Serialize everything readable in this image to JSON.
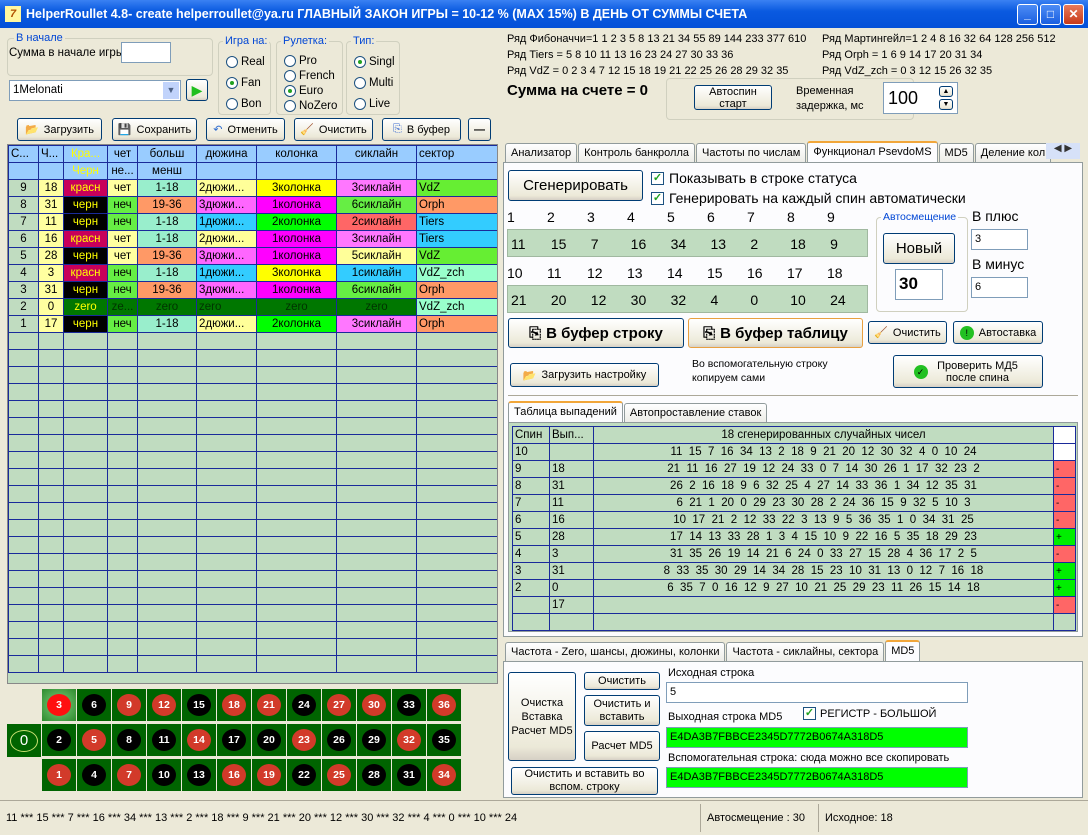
{
  "window": {
    "title": "HelperRoullet 4.8- create helperroullet@ya.ru ГЛАВНЫЙ ЗАКОН ИГРЫ = 10-12 % (MAX 15%) В ДЕНЬ ОТ СУММЫ СЧЕТА",
    "icon_text": "7",
    "min": "_",
    "max": "□",
    "close": "✕"
  },
  "start": {
    "legend": "В начале",
    "sum_label": "Сумма в начале игры",
    "sum_value": "",
    "preset": "1Melonati"
  },
  "game": {
    "legend": "Игра на:",
    "options": [
      "Real",
      "Fan",
      "Bon"
    ],
    "selected": "Fan"
  },
  "roulette": {
    "legend": "Рулетка:",
    "options": [
      "Pro",
      "French",
      "Euro",
      "NoZero"
    ],
    "selected": "Euro"
  },
  "type": {
    "legend": "Тип:",
    "options": [
      "Singl",
      "Multi",
      "Live"
    ],
    "selected": "Singl"
  },
  "toolbar": {
    "load": "Загрузить",
    "save": "Сохранить",
    "undo": "Отменить",
    "clear": "Очистить",
    "copy": "В буфер",
    "minus": "—"
  },
  "colors": {
    "red": "#c8005a",
    "black": "#000000",
    "even": "#ffffa0",
    "odd": "#66ee44",
    "low": "#99eecc",
    "high": "#ff9966",
    "d1": "#33ccff",
    "d2": "#ffff99",
    "d3": "#ff66ff",
    "c1": "#ff00ff",
    "c2": "#00ff00",
    "c3": "#ffff00",
    "s1": "#33ccff",
    "s2": "#ff6666",
    "s3": "#ff77ff",
    "s5": "#ffff99",
    "s6": "#66ee44",
    "VdZ": "#66ee33",
    "Orph": "#ff9966",
    "Tiers": "#33ccff",
    "VdZ_zch": "#99ffcc",
    "zero": "#007700",
    "plus": "#00ee00",
    "minus": "#ff6666"
  },
  "history": {
    "headers1": [
      "С...",
      "Ч...",
      "Кра...",
      "чет",
      "больш",
      "дюжина",
      "колонка",
      "сиклайн",
      "сектор"
    ],
    "headers2": [
      "",
      "",
      "Черн",
      "не...",
      "менш",
      "",
      "",
      "",
      ""
    ],
    "rows": [
      {
        "n": "9",
        "num": "18",
        "color": "красн",
        "c": "red",
        "par": "чет",
        "p": "even",
        "hl": "1-18",
        "h": "low",
        "doz": "2дюжи...",
        "d": "d2",
        "col": "3колонка",
        "k": "c3",
        "six": "3сиклайн",
        "s": "s3",
        "sec": "VdZ"
      },
      {
        "n": "8",
        "num": "31",
        "color": "черн",
        "c": "black",
        "par": "неч",
        "p": "odd",
        "hl": "19-36",
        "h": "high",
        "doz": "3дюжи...",
        "d": "d3",
        "col": "1колонка",
        "k": "c1",
        "six": "6сиклайн",
        "s": "s6",
        "sec": "Orph"
      },
      {
        "n": "7",
        "num": "11",
        "color": "черн",
        "c": "black",
        "par": "неч",
        "p": "odd",
        "hl": "1-18",
        "h": "low",
        "doz": "1дюжи...",
        "d": "d1",
        "col": "2колонка",
        "k": "c2",
        "six": "2сиклайн",
        "s": "s2",
        "sec": "Tiers"
      },
      {
        "n": "6",
        "num": "16",
        "color": "красн",
        "c": "red",
        "par": "чет",
        "p": "even",
        "hl": "1-18",
        "h": "low",
        "doz": "2дюжи...",
        "d": "d2",
        "col": "1колонка",
        "k": "c1",
        "six": "3сиклайн",
        "s": "s3",
        "sec": "Tiers"
      },
      {
        "n": "5",
        "num": "28",
        "color": "черн",
        "c": "black",
        "par": "чет",
        "p": "even",
        "hl": "19-36",
        "h": "high",
        "doz": "3дюжи...",
        "d": "d3",
        "col": "1колонка",
        "k": "c1",
        "six": "5сиклайн",
        "s": "s5",
        "sec": "VdZ"
      },
      {
        "n": "4",
        "num": "3",
        "color": "красн",
        "c": "red",
        "par": "неч",
        "p": "odd",
        "hl": "1-18",
        "h": "low",
        "doz": "1дюжи...",
        "d": "d1",
        "col": "3колонка",
        "k": "c3",
        "six": "1сиклайн",
        "s": "s1",
        "sec": "VdZ_zch"
      },
      {
        "n": "3",
        "num": "31",
        "color": "черн",
        "c": "black",
        "par": "неч",
        "p": "odd",
        "hl": "19-36",
        "h": "high",
        "doz": "3дюжи...",
        "d": "d3",
        "col": "1колонка",
        "k": "c1",
        "six": "6сиклайн",
        "s": "s6",
        "sec": "Orph"
      },
      {
        "n": "2",
        "num": "0",
        "color": "zero",
        "c": "zero",
        "par": "ze...",
        "p": "zero",
        "hl": "zero",
        "h": "zero",
        "doz": "zero",
        "d": "zero",
        "col": "zero",
        "k": "zero",
        "six": "zero",
        "s": "zero",
        "sec": "VdZ_zch"
      },
      {
        "n": "1",
        "num": "17",
        "color": "черн",
        "c": "black",
        "par": "неч",
        "p": "odd",
        "hl": "1-18",
        "h": "low",
        "doz": "2дюжи...",
        "d": "d2",
        "col": "2колонка",
        "k": "c2",
        "six": "3сиклайн",
        "s": "s3",
        "sec": "Orph"
      }
    ]
  },
  "board": {
    "zero": "0",
    "rows": [
      [
        3,
        6,
        9,
        12,
        15,
        18,
        21,
        24,
        27,
        30,
        33,
        36
      ],
      [
        2,
        5,
        8,
        11,
        14,
        17,
        20,
        23,
        26,
        29,
        32,
        35
      ],
      [
        1,
        4,
        7,
        10,
        13,
        16,
        19,
        22,
        25,
        28,
        31,
        34
      ]
    ],
    "red": [
      1,
      3,
      5,
      7,
      9,
      12,
      14,
      16,
      18,
      19,
      21,
      23,
      25,
      27,
      30,
      32,
      34,
      36
    ],
    "highlighted": 3
  },
  "info": {
    "fib": "Ряд Фибоначчи=1 1 2 3 5 8 13 21 34 55 89 144 233 377 610",
    "mart": "Ряд Мартингейл=1 2 4 8 16 32 64 128 256 512",
    "tiers": "Ряд Tiers = 5 8 10 11 13 16 23 24 27 30 33 36",
    "orph": "Ряд Orph = 1 6 9 14 17 20 31 34",
    "vdz": "Ряд VdZ = 0 2 3 4 7 12 15 18 19 21 22 25 26 28 29 32 35",
    "vdzzch": "Ряд VdZ_zch = 0 3 12 15 26 32 35",
    "balance": "Сумма на счете = 0",
    "autospin": "Автоспин старт",
    "delay_label": "Временная задержка, мс",
    "delay": "100"
  },
  "tabs": [
    "Анализатор",
    "Контроль банкролла",
    "Частоты по числам",
    "Функционал PsevdoMS",
    "MD5",
    "Деление кол"
  ],
  "psevdo": {
    "generate": "Сгенерировать",
    "chk1": "Показывать в строке статуса",
    "chk2": "Генерировать на каждый спин автоматически",
    "idx1": [
      "1",
      "2",
      "3",
      "4",
      "5",
      "6",
      "7",
      "8",
      "9"
    ],
    "vals1": [
      "11",
      "15",
      "7",
      "16",
      "34",
      "13",
      "2",
      "18",
      "9"
    ],
    "idx2": [
      "10",
      "11",
      "12",
      "13",
      "14",
      "15",
      "16",
      "17",
      "18"
    ],
    "vals2": [
      "21",
      "20",
      "12",
      "30",
      "32",
      "4",
      "0",
      "10",
      "24"
    ],
    "offset_legend": "Автосмещение",
    "new": "Новый",
    "offset": "30",
    "plus_label": "В плюс",
    "plus": "3",
    "minus_label": "В минус",
    "minus": "6",
    "copy_row": "В буфер строку",
    "copy_table": "В буфер таблицу",
    "clear": "Очистить",
    "autobet": "Автоставка",
    "load_settings": "Загрузить настройку",
    "note": "Во вспомогательную строку копируем сами",
    "check_md5": "Проверить МД5 после спина",
    "subtabs": [
      "Таблица выпадений",
      "Автопроставление ставок"
    ]
  },
  "drops": {
    "headers": [
      "Спин",
      "Вып...",
      "18 сгенерированных случайных чисел",
      ""
    ],
    "rows": [
      {
        "spin": "10",
        "out": "",
        "nums": "11  15  7  16  34  13  2  18  9  21  20  12  30  32  4  0  10  24",
        "res": ""
      },
      {
        "spin": "9",
        "out": "18",
        "nums": "21  11  16  27  19  12  24  33  0  7  14  30  26  1  17  32  23  2",
        "res": "-"
      },
      {
        "spin": "8",
        "out": "31",
        "nums": "26  2  16  18  9  6  32  25  4  27  14  33  36  1  34  12  35  31",
        "res": "-"
      },
      {
        "spin": "7",
        "out": "11",
        "nums": "6  21  1  20  0  29  23  30  28  2  24  36  15  9  32  5  10  3",
        "res": "-"
      },
      {
        "spin": "6",
        "out": "16",
        "nums": "10  17  21  2  12  33  22  3  13  9  5  36  35  1  0  34  31  25",
        "res": "-"
      },
      {
        "spin": "5",
        "out": "28",
        "nums": "17  14  13  33  28  1  3  4  15  10  9  22  16  5  35  18  29  23",
        "res": "+"
      },
      {
        "spin": "4",
        "out": "3",
        "nums": "31  35  26  19  14  21  6  24  0  33  27  15  28  4  36  17  2  5",
        "res": "-"
      },
      {
        "spin": "3",
        "out": "31",
        "nums": "8  33  35  30  29  14  34  28  15  23  10  31  13  0  12  7  16  18",
        "res": "+"
      },
      {
        "spin": "2",
        "out": "0",
        "nums": "6  35  7  0  16  12  9  27  10  21  25  29  23  11  26  15  14  18",
        "res": "+"
      },
      {
        "spin": "",
        "out": "17",
        "nums": "",
        "res": "-"
      }
    ]
  },
  "bottom_tabs": [
    "Частота - Zero, шансы, дюжины, колонки",
    "Частота - сиклайны, сектора",
    "MD5"
  ],
  "md5": {
    "big_btn": "Очистка Вставка Расчет MD5",
    "clear": "Очистить",
    "clear_paste": "Очистить и вставить",
    "calc": "Расчет MD5",
    "clear_paste_aux": "Очистить и  вставить во вспом. строку",
    "src_label": "Исходная строка",
    "src": "5",
    "out_label": "Выходная строка MD5",
    "upper": "РЕГИСТР  - БОЛЬШОЙ",
    "out": "E4DA3B7FBBCE2345D7772B0674A318D5",
    "aux_label": "Вспомогательная строка: сюда можно все скопировать",
    "aux": "E4DA3B7FBBCE2345D7772B0674A318D5"
  },
  "status": {
    "seq": "11 *** 15 *** 7 *** 16 *** 34 *** 13 *** 2 *** 18 *** 9 *** 21 *** 20 *** 12 *** 30 *** 32 *** 4 *** 0 *** 10 *** 24",
    "offset": "Автосмещение : 30",
    "source": "Исходное: 18"
  }
}
